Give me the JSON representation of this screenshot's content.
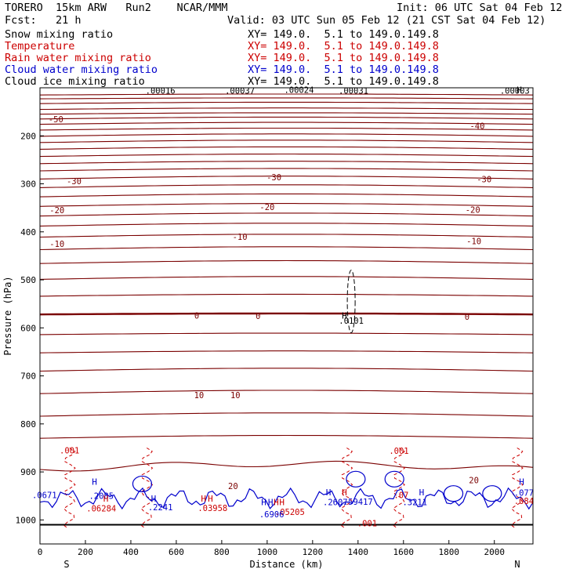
{
  "header": {
    "title": "TORERO  15km ARW   Run2    NCAR/MMM",
    "init": "Init: 06 UTC Sat 04 Feb 12",
    "fcst": "Fcst:   21 h",
    "valid": "Valid: 03 UTC Sun 05 Feb 12 (21 CST Sat 04 Feb 12)"
  },
  "legend": [
    {
      "name": "Snow mixing ratio",
      "color": "#000000",
      "xy": ""
    },
    {
      "name": "Temperature",
      "color": "#cc0000",
      "xy": "XY= 149.0.  5.1 to 149.0.149.8"
    },
    {
      "name": "Rain water mixing ratio",
      "color": "#cc0000",
      "xy": "XY= 149.0.  5.1 to 149.0.149.8"
    },
    {
      "name": "Cloud water mixing ratio",
      "color": "#0000cc",
      "xy": "XY= 149.0.  5.1 to 149.0.149.8"
    },
    {
      "name": "Cloud ice mixing ratio",
      "color": "#000000",
      "xy": "XY= 149.0.  5.1 to 149.0.149.8"
    }
  ],
  "snow_xy": "XY= 149.0.  5.1 to 149.0.149.8",
  "chart_data": {
    "type": "line",
    "subtype": "vertical cross-section contour",
    "xlabel": "Distance (km)",
    "ylabel": "Pressure (hPa)",
    "xlim": [
      0,
      2170
    ],
    "ylim": [
      1050,
      100
    ],
    "x_ticks": [
      0,
      200,
      400,
      600,
      800,
      1000,
      1200,
      1400,
      1600,
      1800,
      2000
    ],
    "y_ticks": [
      200,
      300,
      400,
      500,
      600,
      700,
      800,
      900,
      1000
    ],
    "x_end_labels": {
      "left": "S",
      "right": "N"
    },
    "temperature_contours": [
      {
        "label": "-50",
        "p": 165,
        "amp": 4
      },
      {
        "label": "",
        "p": 115,
        "amp": 2
      },
      {
        "label": "",
        "p": 123,
        "amp": 2
      },
      {
        "label": "",
        "p": 133,
        "amp": 3
      },
      {
        "label": "",
        "p": 145,
        "amp": 3
      },
      {
        "label": "",
        "p": 155,
        "amp": 3
      },
      {
        "label": "",
        "p": 176,
        "amp": 4
      },
      {
        "label": "-40",
        "p": 188,
        "amp": 4
      },
      {
        "label": "",
        "p": 201,
        "amp": 5
      },
      {
        "label": "",
        "p": 214,
        "amp": 5
      },
      {
        "label": "",
        "p": 228,
        "amp": 5
      },
      {
        "label": "",
        "p": 243,
        "amp": 5
      },
      {
        "label": "",
        "p": 258,
        "amp": 5
      },
      {
        "label": "",
        "p": 273,
        "amp": 5
      },
      {
        "label": "-30",
        "p": 290,
        "amp": 6
      },
      {
        "label": "",
        "p": 308,
        "amp": 6
      },
      {
        "label": "",
        "p": 327,
        "amp": 6
      },
      {
        "label": "-20",
        "p": 347,
        "amp": 6
      },
      {
        "label": "",
        "p": 367,
        "amp": 6
      },
      {
        "label": "",
        "p": 388,
        "amp": 6
      },
      {
        "label": "-10",
        "p": 411,
        "amp": 6
      },
      {
        "label": "",
        "p": 437,
        "amp": 6
      },
      {
        "label": "",
        "p": 466,
        "amp": 6
      },
      {
        "label": "",
        "p": 499,
        "amp": 6
      },
      {
        "label": "",
        "p": 534,
        "amp": 4
      },
      {
        "label": "0",
        "p": 572,
        "amp": 2,
        "bold": true
      },
      {
        "label": "",
        "p": 614,
        "amp": 3
      },
      {
        "label": "",
        "p": 652,
        "amp": 4
      },
      {
        "label": "",
        "p": 690,
        "amp": 6
      },
      {
        "label": "10",
        "p": 737,
        "amp": 7
      },
      {
        "label": "",
        "p": 784,
        "amp": 7
      },
      {
        "label": "",
        "p": 830,
        "amp": 6
      },
      {
        "label": "20",
        "p": 895,
        "amp": 12
      }
    ],
    "contour_labels": [
      {
        "text": "-50",
        "x": 70,
        "p": 165
      },
      {
        "text": "-40",
        "x": 1925,
        "p": 179
      },
      {
        "text": "-30",
        "x": 150,
        "p": 294
      },
      {
        "text": "-30",
        "x": 1030,
        "p": 286
      },
      {
        "text": "-30",
        "x": 1955,
        "p": 290
      },
      {
        "text": "-20",
        "x": 75,
        "p": 355
      },
      {
        "text": "-20",
        "x": 1000,
        "p": 348
      },
      {
        "text": "-20",
        "x": 1905,
        "p": 354
      },
      {
        "text": "-10",
        "x": 75,
        "p": 425
      },
      {
        "text": "-10",
        "x": 880,
        "p": 410
      },
      {
        "text": "-10",
        "x": 1910,
        "p": 419
      },
      {
        "text": "0",
        "x": 690,
        "p": 574
      },
      {
        "text": "0",
        "x": 960,
        "p": 575
      },
      {
        "text": "0",
        "x": 1880,
        "p": 577
      },
      {
        "text": "10",
        "x": 700,
        "p": 740
      },
      {
        "text": "10",
        "x": 860,
        "p": 740
      },
      {
        "text": "20",
        "x": 850,
        "p": 929
      },
      {
        "text": "20",
        "x": 1910,
        "p": 917
      }
    ],
    "rain_labels": [
      {
        "text": ".001",
        "x": 130,
        "p": 855
      },
      {
        "text": ".001",
        "x": 1580,
        "p": 856
      },
      {
        "text": ".001",
        "x": 1440,
        "p": 1007
      },
      {
        "text": ".06284",
        "x": 270,
        "p": 976
      },
      {
        "text": ".03958",
        "x": 760,
        "p": 975
      },
      {
        "text": ".05205",
        "x": 1100,
        "p": 983
      },
      {
        "text": ".07",
        "x": 1590,
        "p": 948
      },
      {
        "text": ".084",
        "x": 2130,
        "p": 960
      }
    ],
    "cloud_labels": [
      {
        "text": ".0671",
        "x": 20,
        "p": 948
      },
      {
        "text": ".2085",
        "x": 270,
        "p": 950
      },
      {
        "text": ".2241",
        "x": 530,
        "p": 973
      },
      {
        "text": ".6906",
        "x": 1020,
        "p": 988
      },
      {
        "text": ".2607",
        "x": 1300,
        "p": 963
      },
      {
        "text": ".59417",
        "x": 1400,
        "p": 962
      },
      {
        "text": ".3211",
        "x": 1650,
        "p": 963
      },
      {
        "text": ".077",
        "x": 2130,
        "p": 943
      }
    ],
    "ice_labels": [
      {
        "text": ".00016",
        "x": 530,
        "p": 106
      },
      {
        "text": ".00037",
        "x": 880,
        "p": 106
      },
      {
        "text": ".00024",
        "x": 1140,
        "p": 104
      },
      {
        "text": ".00031",
        "x": 1380,
        "p": 106
      },
      {
        "text": ".00003",
        "x": 2090,
        "p": 106
      },
      {
        "text": ".0101",
        "x": 1370,
        "p": 585
      }
    ],
    "h_markers": [
      {
        "x": 240,
        "p": 920,
        "color": "#0000cc"
      },
      {
        "x": 290,
        "p": 955,
        "color": "#cc0000"
      },
      {
        "x": 500,
        "p": 955,
        "color": "#0000cc"
      },
      {
        "x": 720,
        "p": 955,
        "color": "#cc0000"
      },
      {
        "x": 750,
        "p": 955,
        "color": "#cc0000"
      },
      {
        "x": 985,
        "p": 963,
        "color": "#0000cc"
      },
      {
        "x": 1015,
        "p": 963,
        "color": "#0000cc"
      },
      {
        "x": 1040,
        "p": 963,
        "color": "#cc0000"
      },
      {
        "x": 1065,
        "p": 963,
        "color": "#cc0000"
      },
      {
        "x": 1270,
        "p": 942,
        "color": "#0000cc"
      },
      {
        "x": 1340,
        "p": 942,
        "color": "#cc0000"
      },
      {
        "x": 1680,
        "p": 942,
        "color": "#0000cc"
      },
      {
        "x": 2120,
        "p": 920,
        "color": "#0000cc"
      },
      {
        "x": 1340,
        "p": 574,
        "color": "#000000"
      },
      {
        "x": 2110,
        "p": 104,
        "color": "#000000"
      }
    ],
    "surface_p": 1010
  }
}
